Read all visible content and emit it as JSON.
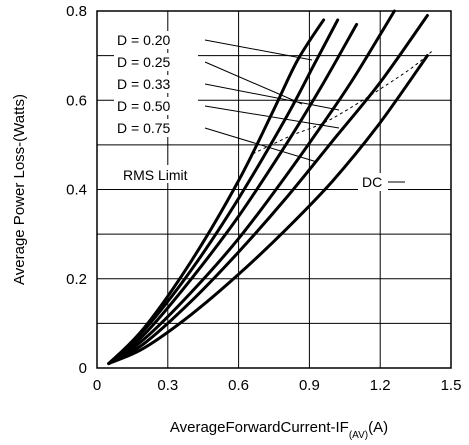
{
  "chart_data": {
    "type": "line",
    "xlabel": "AverageForwardCurrent-IF",
    "xlabel_sub": "(AV)",
    "xlabel_unit": "(A)",
    "ylabel": "Average Power Loss-(Watts)",
    "xlim": [
      0,
      1.5
    ],
    "ylim": [
      0,
      0.8
    ],
    "x_ticks": [
      "0",
      "0.3",
      "0.6",
      "0.9",
      "1.2",
      "1.5"
    ],
    "y_ticks": [
      "0",
      "0.2",
      "0.4",
      "0.6",
      "0.8"
    ],
    "grid": true,
    "series": [
      {
        "name": "D = 0.20",
        "x": [
          0.05,
          0.2,
          0.4,
          0.6,
          0.75,
          0.85,
          0.96
        ],
        "y": [
          0.01,
          0.09,
          0.24,
          0.42,
          0.58,
          0.69,
          0.78
        ]
      },
      {
        "name": "D = 0.25",
        "x": [
          0.05,
          0.2,
          0.4,
          0.6,
          0.8,
          0.92,
          1.02
        ],
        "y": [
          0.01,
          0.085,
          0.22,
          0.38,
          0.56,
          0.68,
          0.78
        ]
      },
      {
        "name": "D = 0.33",
        "x": [
          0.05,
          0.2,
          0.4,
          0.6,
          0.8,
          0.95,
          1.1
        ],
        "y": [
          0.01,
          0.075,
          0.2,
          0.34,
          0.5,
          0.63,
          0.77
        ]
      },
      {
        "name": "D = 0.50",
        "x": [
          0.05,
          0.2,
          0.4,
          0.6,
          0.8,
          1.0,
          1.1,
          1.26
        ],
        "y": [
          0.01,
          0.065,
          0.17,
          0.29,
          0.43,
          0.58,
          0.66,
          0.8
        ]
      },
      {
        "name": "D = 0.75",
        "x": [
          0.05,
          0.2,
          0.4,
          0.6,
          0.8,
          1.0,
          1.2,
          1.4
        ],
        "y": [
          0.01,
          0.055,
          0.15,
          0.26,
          0.38,
          0.51,
          0.64,
          0.79
        ]
      },
      {
        "name": "DC",
        "x": [
          0.05,
          0.2,
          0.4,
          0.6,
          0.8,
          1.0,
          1.2,
          1.4
        ],
        "y": [
          0.01,
          0.045,
          0.12,
          0.21,
          0.31,
          0.42,
          0.55,
          0.7
        ]
      }
    ],
    "rms_limit": {
      "label": "RMS Limit",
      "x": [
        0.66,
        0.82,
        1.0,
        1.3,
        1.42
      ],
      "y": [
        0.48,
        0.52,
        0.56,
        0.66,
        0.71
      ]
    },
    "annotations": [
      {
        "text": "D = 0.20",
        "series": "D = 0.20"
      },
      {
        "text": "D = 0.25",
        "series": "D = 0.25"
      },
      {
        "text": "D = 0.33",
        "series": "D = 0.33"
      },
      {
        "text": "D = 0.50",
        "series": "D = 0.50"
      },
      {
        "text": "D = 0.75",
        "series": "D = 0.75"
      },
      {
        "text": "DC",
        "series": "DC"
      }
    ]
  }
}
